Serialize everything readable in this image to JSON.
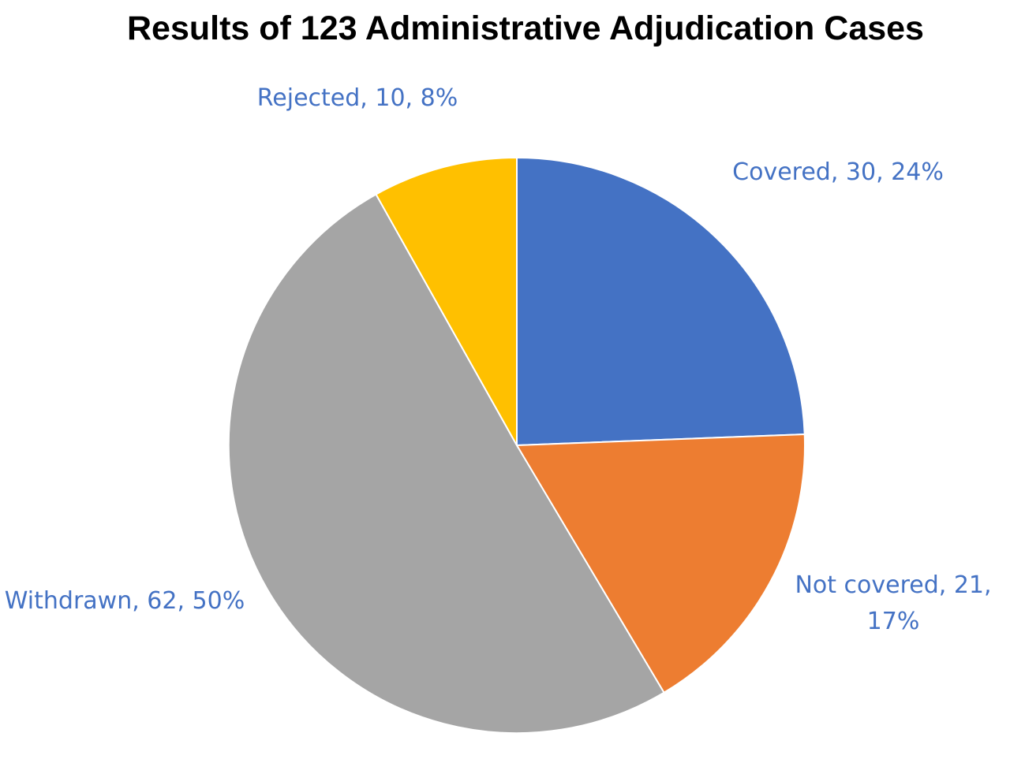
{
  "chart_data": {
    "type": "pie",
    "title": "Results of 123 Administrative Adjudication Cases",
    "total": 123,
    "start_angle_deg": 0,
    "direction": "clockwise",
    "label_color": "#4472c4",
    "slices": [
      {
        "name": "Covered",
        "value": 30,
        "percent": "24%",
        "color": "#4472c4",
        "label_lines": [
          "Covered, 30, 24%"
        ]
      },
      {
        "name": "Not covered",
        "value": 21,
        "percent": "17%",
        "color": "#ed7d31",
        "label_lines": [
          "Not covered, 21,",
          "17%"
        ]
      },
      {
        "name": "Withdrawn",
        "value": 62,
        "percent": "50%",
        "color": "#a5a5a5",
        "label_lines": [
          "Withdrawn, 62, 50%"
        ]
      },
      {
        "name": "Rejected",
        "value": 10,
        "percent": "8%",
        "color": "#ffc000",
        "label_lines": [
          "Rejected, 10, 8%"
        ]
      }
    ]
  }
}
